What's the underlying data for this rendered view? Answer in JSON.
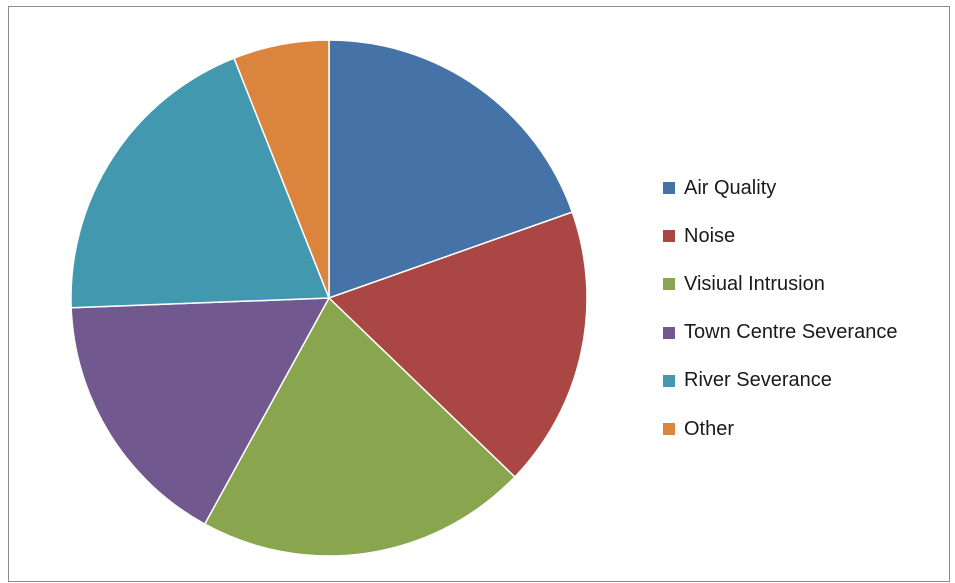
{
  "chart_data": {
    "type": "pie",
    "title": "",
    "slices": [
      {
        "label": "Air Quality",
        "value": 19.6,
        "color": "#4572a7"
      },
      {
        "label": "Noise",
        "value": 17.6,
        "color": "#aa4643"
      },
      {
        "label": "Visiual Intrusion",
        "value": 20.8,
        "color": "#89a54e"
      },
      {
        "label": "Town Centre Severance",
        "value": 16.4,
        "color": "#71588f"
      },
      {
        "label": "River Severance",
        "value": 19.6,
        "color": "#4198af"
      },
      {
        "label": "Other",
        "value": 6.0,
        "color": "#db843d"
      }
    ],
    "legend_position": "right",
    "start_angle": "12 o'clock",
    "direction": "clockwise"
  }
}
